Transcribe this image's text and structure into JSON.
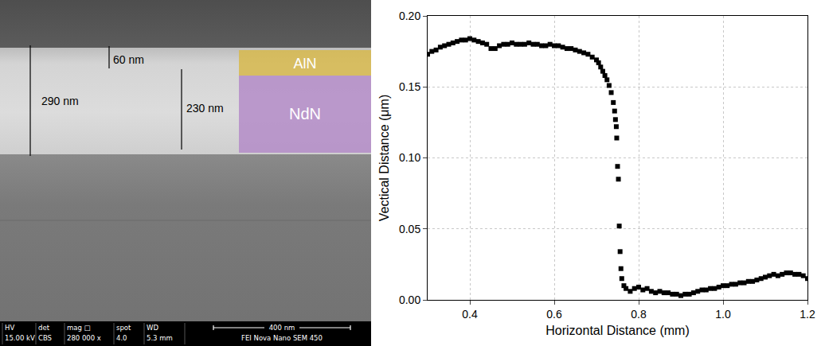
{
  "image_panel": {
    "measurements": [
      "290 nm",
      "60 nm",
      "230 nm"
    ],
    "layer_labels": [
      "AlN",
      "NdN"
    ],
    "info_bar": {
      "fields": [
        {
          "label": "HV",
          "value": "15.00 kV"
        },
        {
          "label": "det",
          "value": "CBS"
        },
        {
          "label": "mag □",
          "value": "280 000 x"
        },
        {
          "label": "spot",
          "value": "4.0"
        },
        {
          "label": "WD",
          "value": "5.3 mm"
        }
      ],
      "scale_bar": "400 nm",
      "instrument": "FEI Nova Nano SEM 450"
    }
  },
  "chart_data": {
    "type": "scatter",
    "x_label": "Horizontal Distance (mm)",
    "y_label": "Vectical Distance (μm)",
    "x": [
      0.3,
      0.31,
      0.32,
      0.33,
      0.34,
      0.35,
      0.36,
      0.37,
      0.38,
      0.39,
      0.4,
      0.41,
      0.42,
      0.43,
      0.44,
      0.45,
      0.46,
      0.47,
      0.48,
      0.49,
      0.5,
      0.51,
      0.52,
      0.53,
      0.54,
      0.55,
      0.56,
      0.57,
      0.58,
      0.59,
      0.6,
      0.61,
      0.62,
      0.63,
      0.64,
      0.65,
      0.66,
      0.67,
      0.68,
      0.69,
      0.7,
      0.705,
      0.71,
      0.715,
      0.72,
      0.725,
      0.73,
      0.735,
      0.74,
      0.743,
      0.745,
      0.747,
      0.748,
      0.75,
      0.752,
      0.754,
      0.756,
      0.758,
      0.76,
      0.765,
      0.77,
      0.78,
      0.79,
      0.8,
      0.81,
      0.82,
      0.83,
      0.84,
      0.85,
      0.86,
      0.87,
      0.88,
      0.89,
      0.9,
      0.91,
      0.92,
      0.93,
      0.94,
      0.95,
      0.96,
      0.97,
      0.98,
      0.99,
      1.0,
      1.01,
      1.02,
      1.03,
      1.04,
      1.05,
      1.06,
      1.07,
      1.08,
      1.09,
      1.1,
      1.11,
      1.12,
      1.13,
      1.14,
      1.15,
      1.16,
      1.17,
      1.18,
      1.19,
      1.2
    ],
    "values": [
      0.173,
      0.175,
      0.176,
      0.178,
      0.179,
      0.18,
      0.181,
      0.182,
      0.183,
      0.183,
      0.184,
      0.183,
      0.182,
      0.181,
      0.18,
      0.177,
      0.177,
      0.179,
      0.18,
      0.18,
      0.181,
      0.18,
      0.18,
      0.18,
      0.181,
      0.18,
      0.18,
      0.179,
      0.179,
      0.18,
      0.179,
      0.179,
      0.178,
      0.177,
      0.177,
      0.176,
      0.175,
      0.174,
      0.173,
      0.171,
      0.169,
      0.167,
      0.164,
      0.161,
      0.158,
      0.155,
      0.151,
      0.146,
      0.139,
      0.133,
      0.127,
      0.122,
      0.114,
      0.094,
      0.085,
      0.052,
      0.034,
      0.022,
      0.015,
      0.01,
      0.008,
      0.006,
      0.008,
      0.009,
      0.007,
      0.008,
      0.006,
      0.005,
      0.006,
      0.005,
      0.005,
      0.004,
      0.004,
      0.003,
      0.004,
      0.004,
      0.005,
      0.006,
      0.007,
      0.007,
      0.008,
      0.008,
      0.009,
      0.01,
      0.01,
      0.011,
      0.011,
      0.012,
      0.012,
      0.013,
      0.013,
      0.014,
      0.015,
      0.016,
      0.017,
      0.018,
      0.017,
      0.018,
      0.019,
      0.019,
      0.018,
      0.018,
      0.017,
      0.015
    ],
    "color": "#000000",
    "marker": "square",
    "xlim": [
      0.3,
      1.2
    ],
    "xticks": [
      0.4,
      0.6,
      0.8,
      {
        "value": 1.0,
        "label": "1.0"
      },
      1.2
    ],
    "ylim": [
      0,
      0.2
    ],
    "yticks": [
      {
        "value": 0,
        "label": "0.00"
      },
      {
        "value": 0.05,
        "label": "0.05"
      },
      {
        "value": 0.1,
        "label": "0.10"
      },
      {
        "value": 0.15,
        "label": "0.15"
      },
      {
        "value": 0.2,
        "label": "0.20"
      }
    ],
    "grid": true
  }
}
